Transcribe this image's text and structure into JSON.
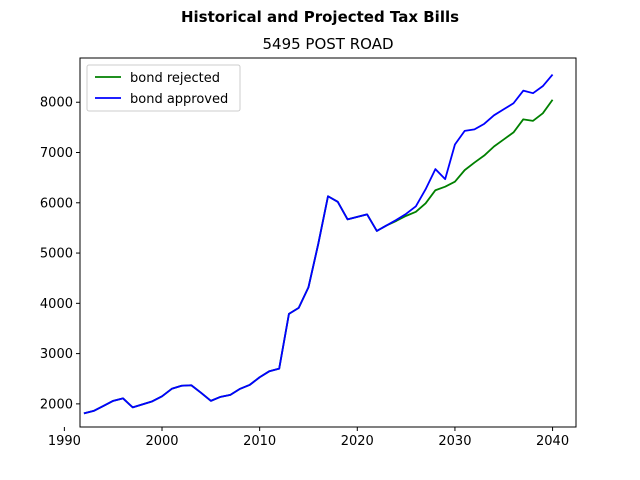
{
  "chart_data": {
    "type": "line",
    "suptitle": "Historical and Projected Tax Bills",
    "title": "5495 POST ROAD",
    "xlabel": "",
    "ylabel": "",
    "xlim": [
      1991.6,
      2042.4
    ],
    "ylim": [
      1540,
      8880
    ],
    "xticks": [
      1990,
      2000,
      2010,
      2020,
      2030,
      2040
    ],
    "yticks": [
      2000,
      3000,
      4000,
      5000,
      6000,
      7000,
      8000
    ],
    "grid": false,
    "legend_position": "upper-left",
    "series": [
      {
        "name": "bond rejected",
        "color": "#008000",
        "x": [
          1992,
          1993,
          1994,
          1995,
          1996,
          1997,
          1998,
          1999,
          2000,
          2001,
          2002,
          2003,
          2004,
          2005,
          2006,
          2007,
          2008,
          2009,
          2010,
          2011,
          2012,
          2013,
          2014,
          2015,
          2016,
          2017,
          2018,
          2019,
          2020,
          2021,
          2022,
          2023,
          2024,
          2025,
          2026,
          2027,
          2028,
          2029,
          2030,
          2031,
          2032,
          2033,
          2034,
          2035,
          2036,
          2037,
          2038,
          2039,
          2040
        ],
        "values": [
          1810,
          1860,
          1960,
          2060,
          2110,
          1930,
          1990,
          2050,
          2150,
          2300,
          2360,
          2370,
          2220,
          2060,
          2140,
          2180,
          2300,
          2380,
          2530,
          2650,
          2700,
          3790,
          3910,
          4320,
          5180,
          6130,
          6020,
          5670,
          5720,
          5770,
          5440,
          5550,
          5640,
          5740,
          5820,
          5990,
          6250,
          6320,
          6420,
          6650,
          6800,
          6940,
          7120,
          7260,
          7400,
          7660,
          7630,
          7780,
          8050
        ]
      },
      {
        "name": "bond approved",
        "color": "#0000ff",
        "x": [
          1992,
          1993,
          1994,
          1995,
          1996,
          1997,
          1998,
          1999,
          2000,
          2001,
          2002,
          2003,
          2004,
          2005,
          2006,
          2007,
          2008,
          2009,
          2010,
          2011,
          2012,
          2013,
          2014,
          2015,
          2016,
          2017,
          2018,
          2019,
          2020,
          2021,
          2022,
          2023,
          2024,
          2025,
          2026,
          2027,
          2028,
          2029,
          2030,
          2031,
          2032,
          2033,
          2034,
          2035,
          2036,
          2037,
          2038,
          2039,
          2040
        ],
        "values": [
          1810,
          1860,
          1960,
          2060,
          2110,
          1930,
          1990,
          2050,
          2150,
          2300,
          2360,
          2370,
          2220,
          2060,
          2140,
          2180,
          2300,
          2380,
          2530,
          2650,
          2700,
          3790,
          3910,
          4320,
          5180,
          6130,
          6020,
          5670,
          5720,
          5770,
          5440,
          5550,
          5660,
          5780,
          5930,
          6270,
          6670,
          6470,
          7160,
          7430,
          7460,
          7570,
          7740,
          7860,
          7980,
          8230,
          8180,
          8320,
          8550
        ]
      }
    ]
  }
}
